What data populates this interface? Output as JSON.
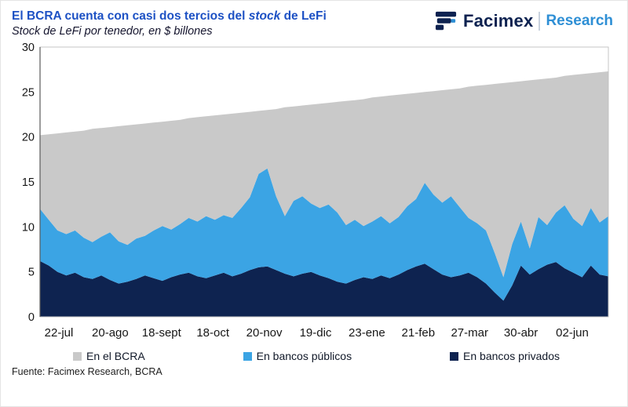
{
  "header": {
    "title_prefix": "El BCRA cuenta con casi dos tercios del ",
    "title_italic": "stock",
    "title_suffix": " de LeFi",
    "subtitle": "Stock de LeFi por tenedor, en $ billones",
    "brand": "Facimex",
    "brand_sub": "Research"
  },
  "footer": {
    "source": "Fuente: Facimex Research, BCRA"
  },
  "colors": {
    "title_blue": "#1d51c4",
    "brand_navy": "#0d2250",
    "research_blue": "#2e8fd5",
    "bcra_gray": "#c9c9c9",
    "publicos_blue": "#3ba4e4",
    "privados_navy": "#0e2350"
  },
  "chart_data": {
    "type": "area",
    "stacked": true,
    "title": "El BCRA cuenta con casi dos tercios del stock de LeFi",
    "subtitle": "Stock de LeFi por tenedor, en $ billones",
    "ylim": [
      0,
      30
    ],
    "y_ticks": [
      0,
      5,
      10,
      15,
      20,
      25,
      30
    ],
    "x_tick_labels": [
      "22-jul",
      "20-ago",
      "18-sept",
      "18-oct",
      "20-nov",
      "19-dic",
      "23-ene",
      "21-feb",
      "27-mar",
      "30-abr",
      "02-jun"
    ],
    "grid": false,
    "legend_position": "bottom",
    "series": [
      {
        "name": "En bancos privados",
        "color": "#0e2350",
        "values": [
          6.2,
          5.7,
          5.0,
          4.6,
          4.9,
          4.4,
          4.2,
          4.6,
          4.1,
          3.7,
          3.9,
          4.2,
          4.6,
          4.3,
          4.0,
          4.4,
          4.7,
          4.9,
          4.5,
          4.3,
          4.6,
          4.9,
          4.5,
          4.8,
          5.2,
          5.5,
          5.6,
          5.2,
          4.8,
          4.5,
          4.8,
          5.0,
          4.6,
          4.3,
          3.9,
          3.7,
          4.1,
          4.4,
          4.2,
          4.6,
          4.3,
          4.7,
          5.2,
          5.6,
          5.9,
          5.3,
          4.7,
          4.4,
          4.6,
          4.9,
          4.4,
          3.7,
          2.7,
          1.8,
          3.5,
          5.7,
          4.7,
          5.3,
          5.8,
          6.1,
          5.4,
          4.9,
          4.4,
          5.7,
          4.7,
          4.5
        ]
      },
      {
        "name": "En bancos públicos",
        "color": "#3ba4e4",
        "values": [
          5.8,
          5.1,
          4.6,
          4.6,
          4.7,
          4.4,
          4.1,
          4.3,
          5.3,
          4.7,
          4.1,
          4.5,
          4.4,
          5.3,
          6.1,
          5.3,
          5.6,
          6.1,
          6.1,
          6.9,
          6.2,
          6.4,
          6.5,
          7.3,
          8.1,
          10.4,
          10.9,
          8.2,
          6.4,
          8.4,
          8.6,
          7.6,
          7.5,
          8.2,
          7.7,
          6.5,
          6.7,
          5.7,
          6.4,
          6.6,
          6.1,
          6.4,
          7.1,
          7.5,
          9.0,
          8.3,
          8.0,
          9.0,
          7.6,
          6.1,
          6.0,
          5.9,
          4.4,
          2.6,
          4.6,
          4.9,
          2.9,
          5.8,
          4.4,
          5.5,
          7.0,
          6.0,
          5.7,
          6.4,
          5.8,
          6.7
        ]
      },
      {
        "name": "En el BCRA",
        "color": "#c9c9c9",
        "values": [
          8.2,
          9.5,
          10.8,
          11.3,
          11.0,
          11.9,
          12.6,
          12.1,
          11.7,
          12.8,
          13.3,
          12.7,
          12.5,
          12.0,
          11.6,
          12.1,
          11.6,
          11.1,
          11.6,
          11.1,
          11.6,
          11.2,
          11.6,
          10.6,
          9.5,
          7.0,
          6.5,
          9.7,
          12.1,
          10.5,
          10.1,
          11.0,
          11.6,
          11.3,
          12.3,
          13.8,
          13.3,
          14.1,
          13.8,
          13.3,
          14.2,
          13.6,
          12.5,
          11.8,
          10.1,
          11.5,
          12.5,
          11.9,
          13.2,
          14.6,
          15.3,
          16.2,
          18.8,
          21.6,
          18.0,
          15.6,
          18.7,
          15.3,
          16.3,
          15.0,
          14.4,
          16.0,
          16.9,
          15.0,
          16.7,
          16.1
        ]
      }
    ],
    "legend": [
      {
        "label": "En el BCRA",
        "color": "#c9c9c9"
      },
      {
        "label": "En bancos públicos",
        "color": "#3ba4e4"
      },
      {
        "label": "En bancos privados",
        "color": "#0e2350"
      }
    ]
  }
}
